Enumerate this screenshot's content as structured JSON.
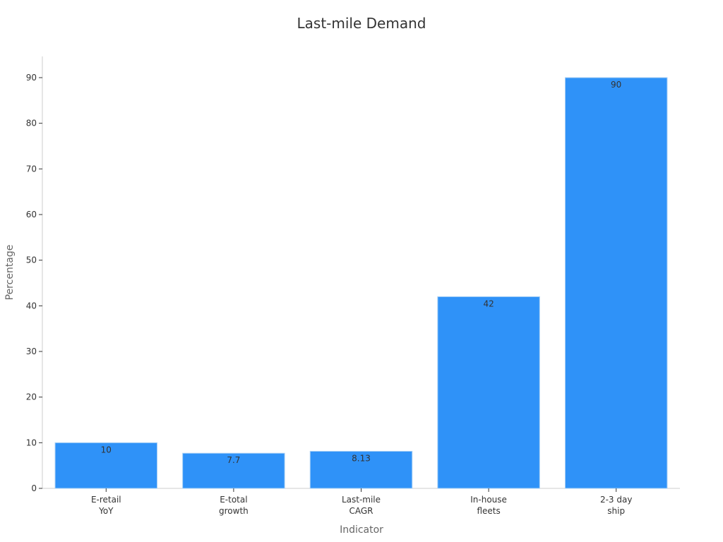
{
  "chart_data": {
    "type": "bar",
    "title": "Last-mile Demand",
    "xlabel": "Indicator",
    "ylabel": "Percentage",
    "categories": [
      [
        "E-retail",
        "YoY"
      ],
      [
        "E-total",
        "growth"
      ],
      [
        "Last-mile",
        "CAGR"
      ],
      [
        "In-house",
        "fleets"
      ],
      [
        "2-3 day",
        "ship"
      ]
    ],
    "values": [
      10,
      7.7,
      8.13,
      42,
      90
    ],
    "value_labels": [
      "10",
      "7.7",
      "8.13",
      "42",
      "90"
    ],
    "y_ticks": [
      0,
      10,
      20,
      30,
      40,
      50,
      60,
      70,
      80,
      90
    ],
    "ylim": [
      0,
      95
    ],
    "grid": false,
    "bar_color": "#2F92F8",
    "bar_border_color": "#A9D0F5"
  }
}
